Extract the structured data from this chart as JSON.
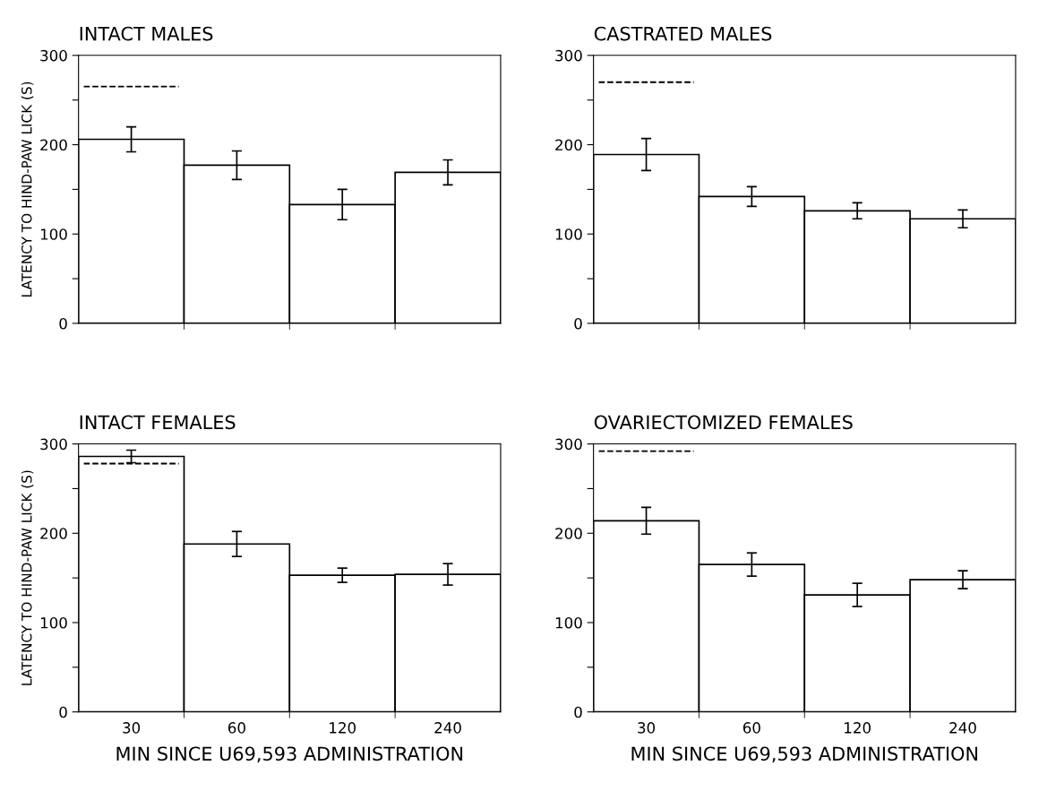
{
  "chart_data": [
    {
      "type": "bar",
      "title": "INTACT MALES",
      "ylabel": "LATENCY TO HIND-PAW LICK (S)",
      "categories": [
        "30",
        "60",
        "120",
        "240"
      ],
      "values": [
        206,
        177,
        133,
        169
      ],
      "errors": [
        14,
        16,
        17,
        14
      ],
      "colors": [
        "#ffffff",
        "#ffffff",
        "#ffffff",
        "#ffffff"
      ],
      "ylim": [
        0,
        300
      ],
      "yticks": [
        0,
        {
          "value": 50,
          "label": null
        },
        100,
        {
          "value": 150,
          "label": null
        },
        200,
        {
          "value": 250,
          "label": null
        },
        300
      ],
      "ref_lines": [
        {
          "axis": "y",
          "value": 265,
          "line_style": "dashed",
          "color": "#000000"
        }
      ],
      "tick_labels": "y",
      "grid": false,
      "legend": false
    },
    {
      "type": "bar",
      "title": "CASTRATED MALES",
      "categories": [
        "30",
        "60",
        "120",
        "240"
      ],
      "values": [
        189,
        142,
        126,
        117
      ],
      "errors": [
        18,
        11,
        9,
        10
      ],
      "colors": [
        "#ffffff",
        "#ffffff",
        "#ffffff",
        "#ffffff"
      ],
      "ylim": [
        0,
        300
      ],
      "yticks": [
        0,
        {
          "value": 50,
          "label": null
        },
        100,
        {
          "value": 150,
          "label": null
        },
        200,
        {
          "value": 250,
          "label": null
        },
        300
      ],
      "ref_lines": [
        {
          "axis": "y",
          "value": 270,
          "line_style": "dashed",
          "color": "#000000"
        }
      ],
      "tick_labels": "y",
      "grid": false,
      "legend": false
    },
    {
      "type": "bar",
      "title": "INTACT FEMALES",
      "ylabel": "LATENCY TO HIND-PAW LICK (S)",
      "xlabel": "MIN SINCE U69,593 ADMINISTRATION",
      "categories": [
        "30",
        "60",
        "120",
        "240"
      ],
      "values": [
        286,
        188,
        153,
        154
      ],
      "errors": [
        7,
        14,
        8,
        12
      ],
      "colors": [
        "#ffffff",
        "#ffffff",
        "#ffffff",
        "#ffffff"
      ],
      "ylim": [
        0,
        300
      ],
      "yticks": [
        0,
        {
          "value": 50,
          "label": null
        },
        100,
        {
          "value": 150,
          "label": null
        },
        200,
        {
          "value": 250,
          "label": null
        },
        300
      ],
      "ref_lines": [
        {
          "axis": "y",
          "value": 278,
          "line_style": "dashed",
          "color": "#000000"
        }
      ],
      "grid": false,
      "legend": false
    },
    {
      "type": "bar",
      "title": "OVARIECTOMIZED FEMALES",
      "xlabel": "MIN SINCE U69,593 ADMINISTRATION",
      "categories": [
        "30",
        "60",
        "120",
        "240"
      ],
      "values": [
        214,
        165,
        131,
        148
      ],
      "errors": [
        15,
        13,
        13,
        10
      ],
      "colors": [
        "#ffffff",
        "#ffffff",
        "#ffffff",
        "#ffffff"
      ],
      "ylim": [
        0,
        300
      ],
      "yticks": [
        0,
        {
          "value": 50,
          "label": null
        },
        100,
        {
          "value": 150,
          "label": null
        },
        200,
        {
          "value": 250,
          "label": null
        },
        300
      ],
      "ref_lines": [
        {
          "axis": "y",
          "value": 292,
          "line_style": "dashed",
          "color": "#000000"
        }
      ],
      "grid": false,
      "legend": false
    }
  ]
}
